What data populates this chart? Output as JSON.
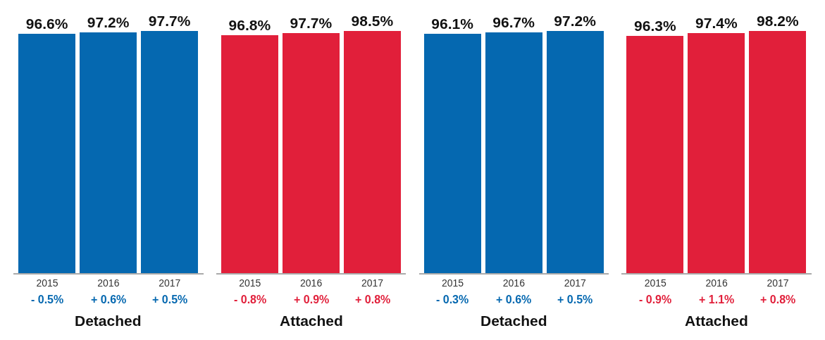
{
  "chart_data": [
    {
      "type": "bar",
      "categories": [
        "2015",
        "2016",
        "2017"
      ],
      "values": [
        96.6,
        97.2,
        97.7
      ],
      "value_labels": [
        "96.6%",
        "97.2%",
        "97.7%"
      ],
      "color": "#0568b0",
      "xlabel": "Detached",
      "annotations": [
        "- 0.5%",
        "+ 0.6%",
        "+ 0.5%"
      ]
    },
    {
      "type": "bar",
      "categories": [
        "2015",
        "2016",
        "2017"
      ],
      "values": [
        96.8,
        97.7,
        98.5
      ],
      "value_labels": [
        "96.8%",
        "97.7%",
        "98.5%"
      ],
      "color": "#e11f3a",
      "xlabel": "Attached",
      "annotations": [
        "- 0.8%",
        "+ 0.9%",
        "+ 0.8%"
      ]
    },
    {
      "type": "bar",
      "categories": [
        "2015",
        "2016",
        "2017"
      ],
      "values": [
        96.1,
        96.7,
        97.2
      ],
      "value_labels": [
        "96.1%",
        "96.7%",
        "97.2%"
      ],
      "color": "#0568b0",
      "xlabel": "Detached",
      "annotations": [
        "- 0.3%",
        "+ 0.6%",
        "+ 0.5%"
      ]
    },
    {
      "type": "bar",
      "categories": [
        "2015",
        "2016",
        "2017"
      ],
      "values": [
        96.3,
        97.4,
        98.2
      ],
      "value_labels": [
        "96.3%",
        "97.4%",
        "98.2%"
      ],
      "color": "#e11f3a",
      "xlabel": "Attached",
      "annotations": [
        "- 0.9%",
        "+ 1.1%",
        "+ 0.8%"
      ]
    }
  ]
}
